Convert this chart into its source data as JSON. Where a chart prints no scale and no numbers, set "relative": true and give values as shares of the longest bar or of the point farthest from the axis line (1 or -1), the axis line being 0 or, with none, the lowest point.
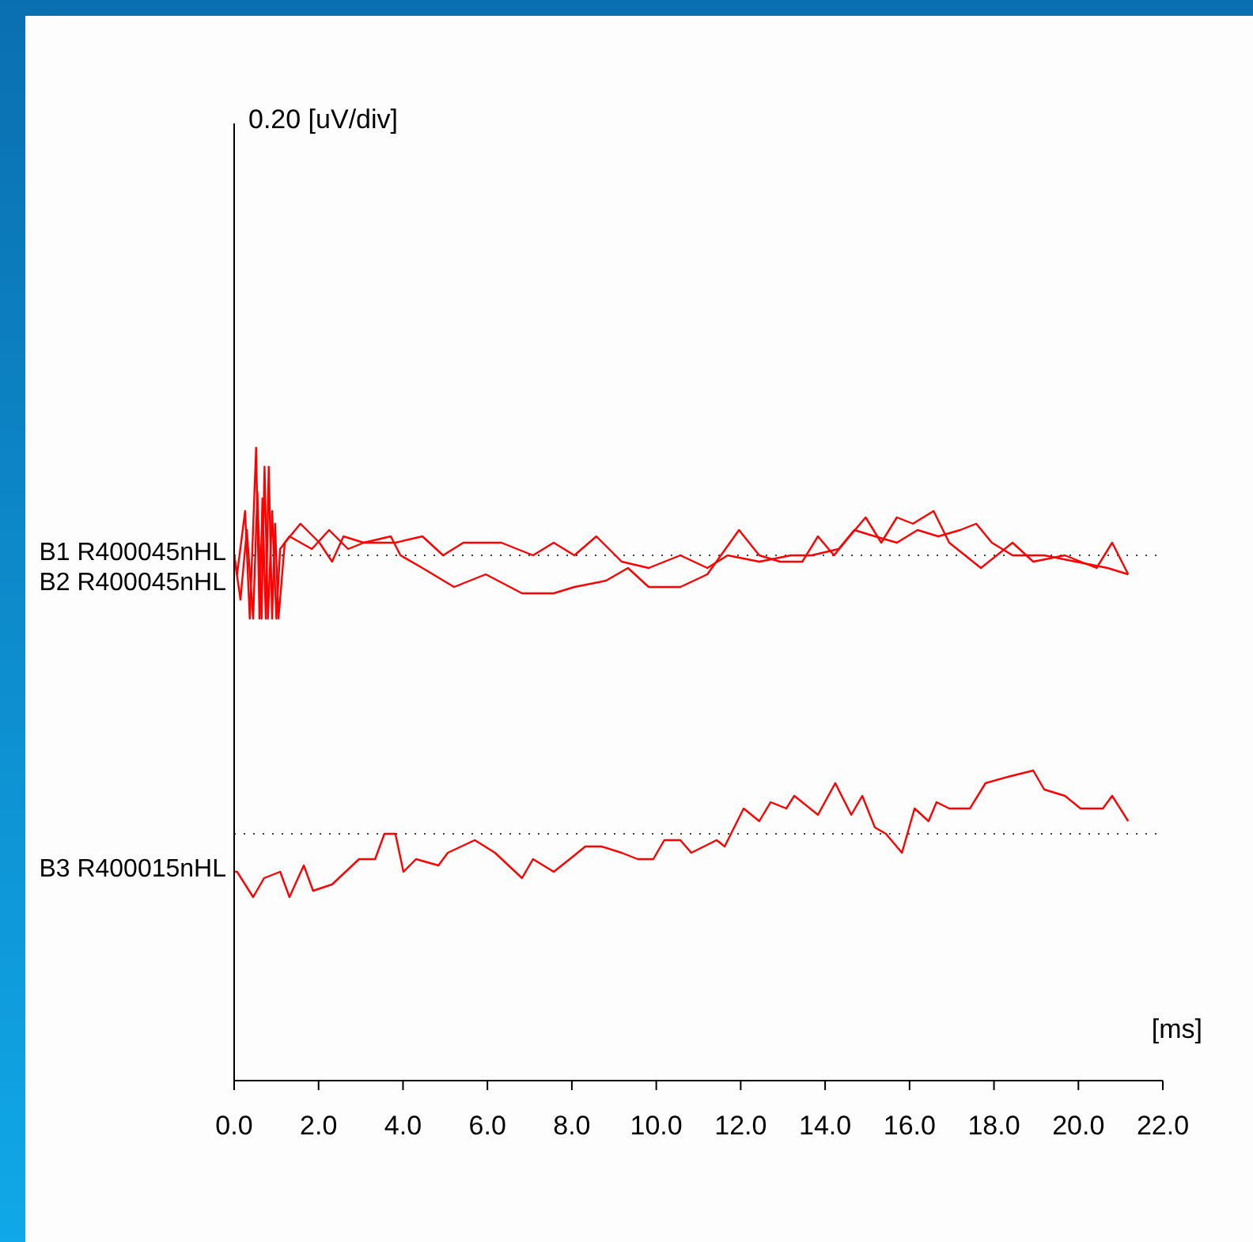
{
  "chart_data": {
    "type": "line",
    "xlabel": "[ms]",
    "annotations": [
      "0.20 [uV/div]"
    ],
    "relative": true,
    "xlim": [
      0,
      22
    ],
    "xticks": [
      {
        "value": 0,
        "label": "0.0"
      },
      {
        "value": 2,
        "label": "2.0"
      },
      {
        "value": 4,
        "label": "4.0"
      },
      {
        "value": 6,
        "label": "6.0"
      },
      {
        "value": 8,
        "label": "8.0"
      },
      {
        "value": 10,
        "label": "10.0"
      },
      {
        "value": 12,
        "label": "12.0"
      },
      {
        "value": 14,
        "label": "14.0"
      },
      {
        "value": 16,
        "label": "16.0"
      },
      {
        "value": 18,
        "label": "18.0"
      },
      {
        "value": 20,
        "label": "20.0"
      },
      {
        "value": 22,
        "label": "22.0"
      }
    ],
    "ref_lines": [
      {
        "axis": "y",
        "value": 0.83,
        "line_style": "dotted",
        "color": "#404040"
      },
      {
        "axis": "y",
        "value": 0.39,
        "line_style": "dotted",
        "color": "#404040"
      }
    ],
    "series": [
      {
        "name": "B1 R400045nHL",
        "color": "#ff0000",
        "x": [
          0,
          0.07,
          0.26,
          0.37,
          0.52,
          0.6,
          0.67,
          0.75,
          0.82,
          0.9,
          0.97,
          1.05,
          1.2,
          1.57,
          2.02,
          2.32,
          2.59,
          3.07,
          3.71,
          3.94,
          4.46,
          5.21,
          5.96,
          6.82,
          7.57,
          8.06,
          8.81,
          9.33,
          9.82,
          10.57,
          11.21,
          11.96,
          12.44,
          12.93,
          13.46,
          13.83,
          14.21,
          14.58,
          14.96,
          15.33,
          15.7,
          16.08,
          16.57,
          16.94,
          17.69,
          18.44,
          18.93,
          19.68,
          20.43,
          20.8,
          21.18
        ],
        "values": [
          0.83,
          0.8,
          0.9,
          0.73,
          1.0,
          0.73,
          0.92,
          0.73,
          0.97,
          0.73,
          0.88,
          0.73,
          0.85,
          0.88,
          0.85,
          0.82,
          0.86,
          0.85,
          0.86,
          0.83,
          0.81,
          0.78,
          0.8,
          0.77,
          0.77,
          0.78,
          0.79,
          0.81,
          0.78,
          0.78,
          0.8,
          0.87,
          0.83,
          0.82,
          0.82,
          0.86,
          0.83,
          0.86,
          0.89,
          0.85,
          0.89,
          0.88,
          0.9,
          0.85,
          0.81,
          0.85,
          0.82,
          0.83,
          0.81,
          0.85,
          0.8
        ]
      },
      {
        "name": "B2 R400045nHL",
        "color": "#ff0000",
        "x": [
          0,
          0.15,
          0.3,
          0.45,
          0.55,
          0.65,
          0.72,
          0.8,
          0.9,
          1.0,
          1.09,
          1.31,
          1.84,
          2.25,
          2.7,
          3.07,
          3.82,
          4.46,
          4.95,
          5.43,
          6.33,
          7.08,
          7.57,
          8.06,
          8.58,
          9.18,
          9.82,
          10.57,
          11.21,
          11.69,
          12.44,
          13.19,
          13.68,
          14.32,
          14.69,
          15.18,
          15.7,
          16.19,
          16.68,
          17.2,
          17.58,
          17.95,
          18.44,
          19.19,
          19.94,
          20.69,
          21.18
        ],
        "values": [
          0.83,
          0.76,
          0.87,
          0.73,
          0.93,
          0.73,
          0.97,
          0.73,
          0.9,
          0.73,
          0.84,
          0.86,
          0.84,
          0.87,
          0.84,
          0.85,
          0.85,
          0.86,
          0.83,
          0.85,
          0.85,
          0.83,
          0.85,
          0.83,
          0.86,
          0.82,
          0.81,
          0.83,
          0.81,
          0.83,
          0.82,
          0.83,
          0.83,
          0.84,
          0.87,
          0.86,
          0.85,
          0.87,
          0.86,
          0.87,
          0.88,
          0.85,
          0.83,
          0.83,
          0.82,
          0.81,
          0.8
        ]
      },
      {
        "name": "B3 R400015nHL",
        "color": "#ff0000",
        "x": [
          0,
          0.07,
          0.45,
          0.71,
          1.09,
          1.31,
          1.65,
          1.87,
          2.32,
          2.96,
          3.34,
          3.56,
          3.82,
          4.01,
          4.31,
          4.84,
          5.06,
          5.7,
          6.18,
          6.82,
          7.08,
          7.57,
          7.95,
          8.32,
          8.7,
          9.18,
          9.56,
          9.93,
          10.19,
          10.57,
          10.83,
          11.43,
          11.62,
          12.07,
          12.44,
          12.71,
          13.08,
          13.27,
          13.83,
          14.24,
          14.62,
          14.88,
          15.18,
          15.44,
          15.82,
          16.12,
          16.45,
          16.64,
          16.94,
          17.43,
          17.8,
          18.33,
          18.93,
          19.19,
          19.68,
          20.05,
          20.58,
          20.8,
          21.18
        ],
        "values": [
          0.33,
          0.33,
          0.29,
          0.32,
          0.33,
          0.29,
          0.34,
          0.3,
          0.31,
          0.35,
          0.35,
          0.39,
          0.39,
          0.33,
          0.35,
          0.34,
          0.36,
          0.38,
          0.36,
          0.32,
          0.35,
          0.33,
          0.35,
          0.37,
          0.37,
          0.36,
          0.35,
          0.35,
          0.38,
          0.38,
          0.36,
          0.38,
          0.37,
          0.43,
          0.41,
          0.44,
          0.43,
          0.45,
          0.42,
          0.47,
          0.42,
          0.45,
          0.4,
          0.39,
          0.36,
          0.43,
          0.41,
          0.44,
          0.43,
          0.43,
          0.47,
          0.48,
          0.49,
          0.46,
          0.45,
          0.43,
          0.43,
          0.45,
          0.41
        ]
      }
    ]
  }
}
